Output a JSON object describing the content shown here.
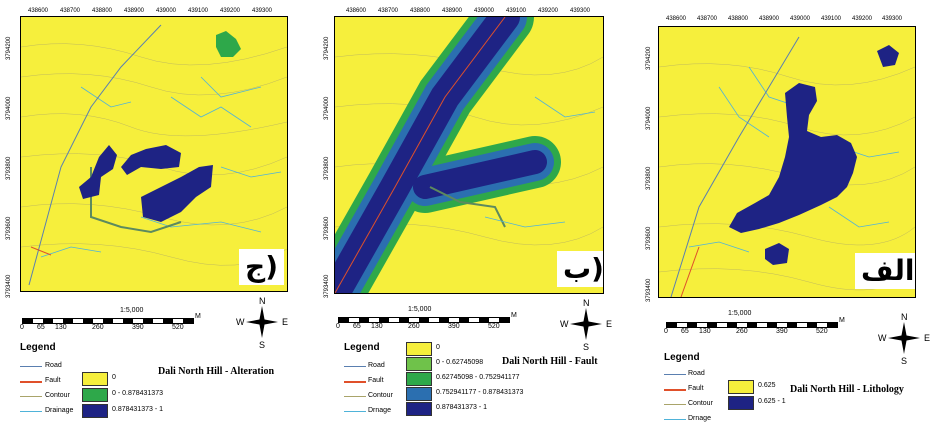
{
  "panels": [
    {
      "id": "alteration",
      "label": "ج)",
      "top_ticks": [
        "438600",
        "438700",
        "438800",
        "438900",
        "439000",
        "439100",
        "439200",
        "439300"
      ],
      "side_ticks": [
        "3794200",
        "3794100",
        "3794000",
        "3793900",
        "3793800",
        "3793700",
        "3793600",
        "3793500",
        "3793400"
      ],
      "scale_text": "1:5,000",
      "scale_unit": "M",
      "scale_ticks": [
        "0",
        "65",
        "130",
        "260",
        "390",
        "520"
      ],
      "legend_title": "Legend",
      "line_items": [
        "Road",
        "Fault",
        "Contour",
        "Drainage"
      ],
      "classes": [
        {
          "label": "0",
          "color": "#f6ef3c"
        },
        {
          "label": "0 - 0.878431373",
          "color": "#2ea84a"
        },
        {
          "label": "0.878431373 - 1",
          "color": "#1e2384"
        }
      ],
      "map_title": "Dali North Hill - Alteration"
    },
    {
      "id": "fault",
      "label": "ب)",
      "top_ticks": [
        "438600",
        "438700",
        "438800",
        "438900",
        "439000",
        "439100",
        "439200",
        "439300"
      ],
      "side_ticks": [
        "3794200",
        "3794100",
        "3794000",
        "3793900",
        "3793800",
        "3793700",
        "3793600",
        "3793500",
        "3793400"
      ],
      "scale_text": "1:5,000",
      "scale_unit": "M",
      "scale_ticks": [
        "0",
        "65",
        "130",
        "260",
        "390",
        "520"
      ],
      "legend_title": "Legend",
      "line_items": [
        "Road",
        "Fault",
        "Contour",
        "Drnage"
      ],
      "classes": [
        {
          "label": "0",
          "color": "#f6ef3c"
        },
        {
          "label": "0 - 0.62745098",
          "color": "#6fc24a"
        },
        {
          "label": "0.62745098 - 0.752941177",
          "color": "#2ea84a"
        },
        {
          "label": "0.752941177 - 0.878431373",
          "color": "#2b6fb0"
        },
        {
          "label": "0.878431373 - 1",
          "color": "#1e2384"
        }
      ],
      "map_title": "Dali North Hill - Fault"
    },
    {
      "id": "lithology",
      "label": "الف)",
      "top_ticks": [
        "438600",
        "438700",
        "438800",
        "438900",
        "439000",
        "439100",
        "439200",
        "439300"
      ],
      "side_ticks": [
        "3794200",
        "3794100",
        "3794000",
        "3793900",
        "3793800",
        "3793700",
        "3793600",
        "3793500",
        "3793400"
      ],
      "scale_text": "1:5,000",
      "scale_unit": "M",
      "scale_ticks": [
        "0",
        "65",
        "130",
        "260",
        "390",
        "520"
      ],
      "legend_title": "Legend",
      "line_items": [
        "Road",
        "Fault",
        "Contour",
        "Drnage"
      ],
      "classes": [
        {
          "label": "0.625",
          "color": "#f6ef3c"
        },
        {
          "label": "0.625 - 1",
          "color": "#1e2384"
        }
      ],
      "map_title": "Dali North Hill - Lithology"
    }
  ],
  "north_letters": {
    "n": "N",
    "s": "S",
    "e": "E",
    "w": "W"
  },
  "colors": {
    "road": "#5a7fb0",
    "fault": "#e0502a",
    "contour": "#a9a46a",
    "drainage": "#4fb3d9",
    "map_bg": "#f6ef3c"
  }
}
